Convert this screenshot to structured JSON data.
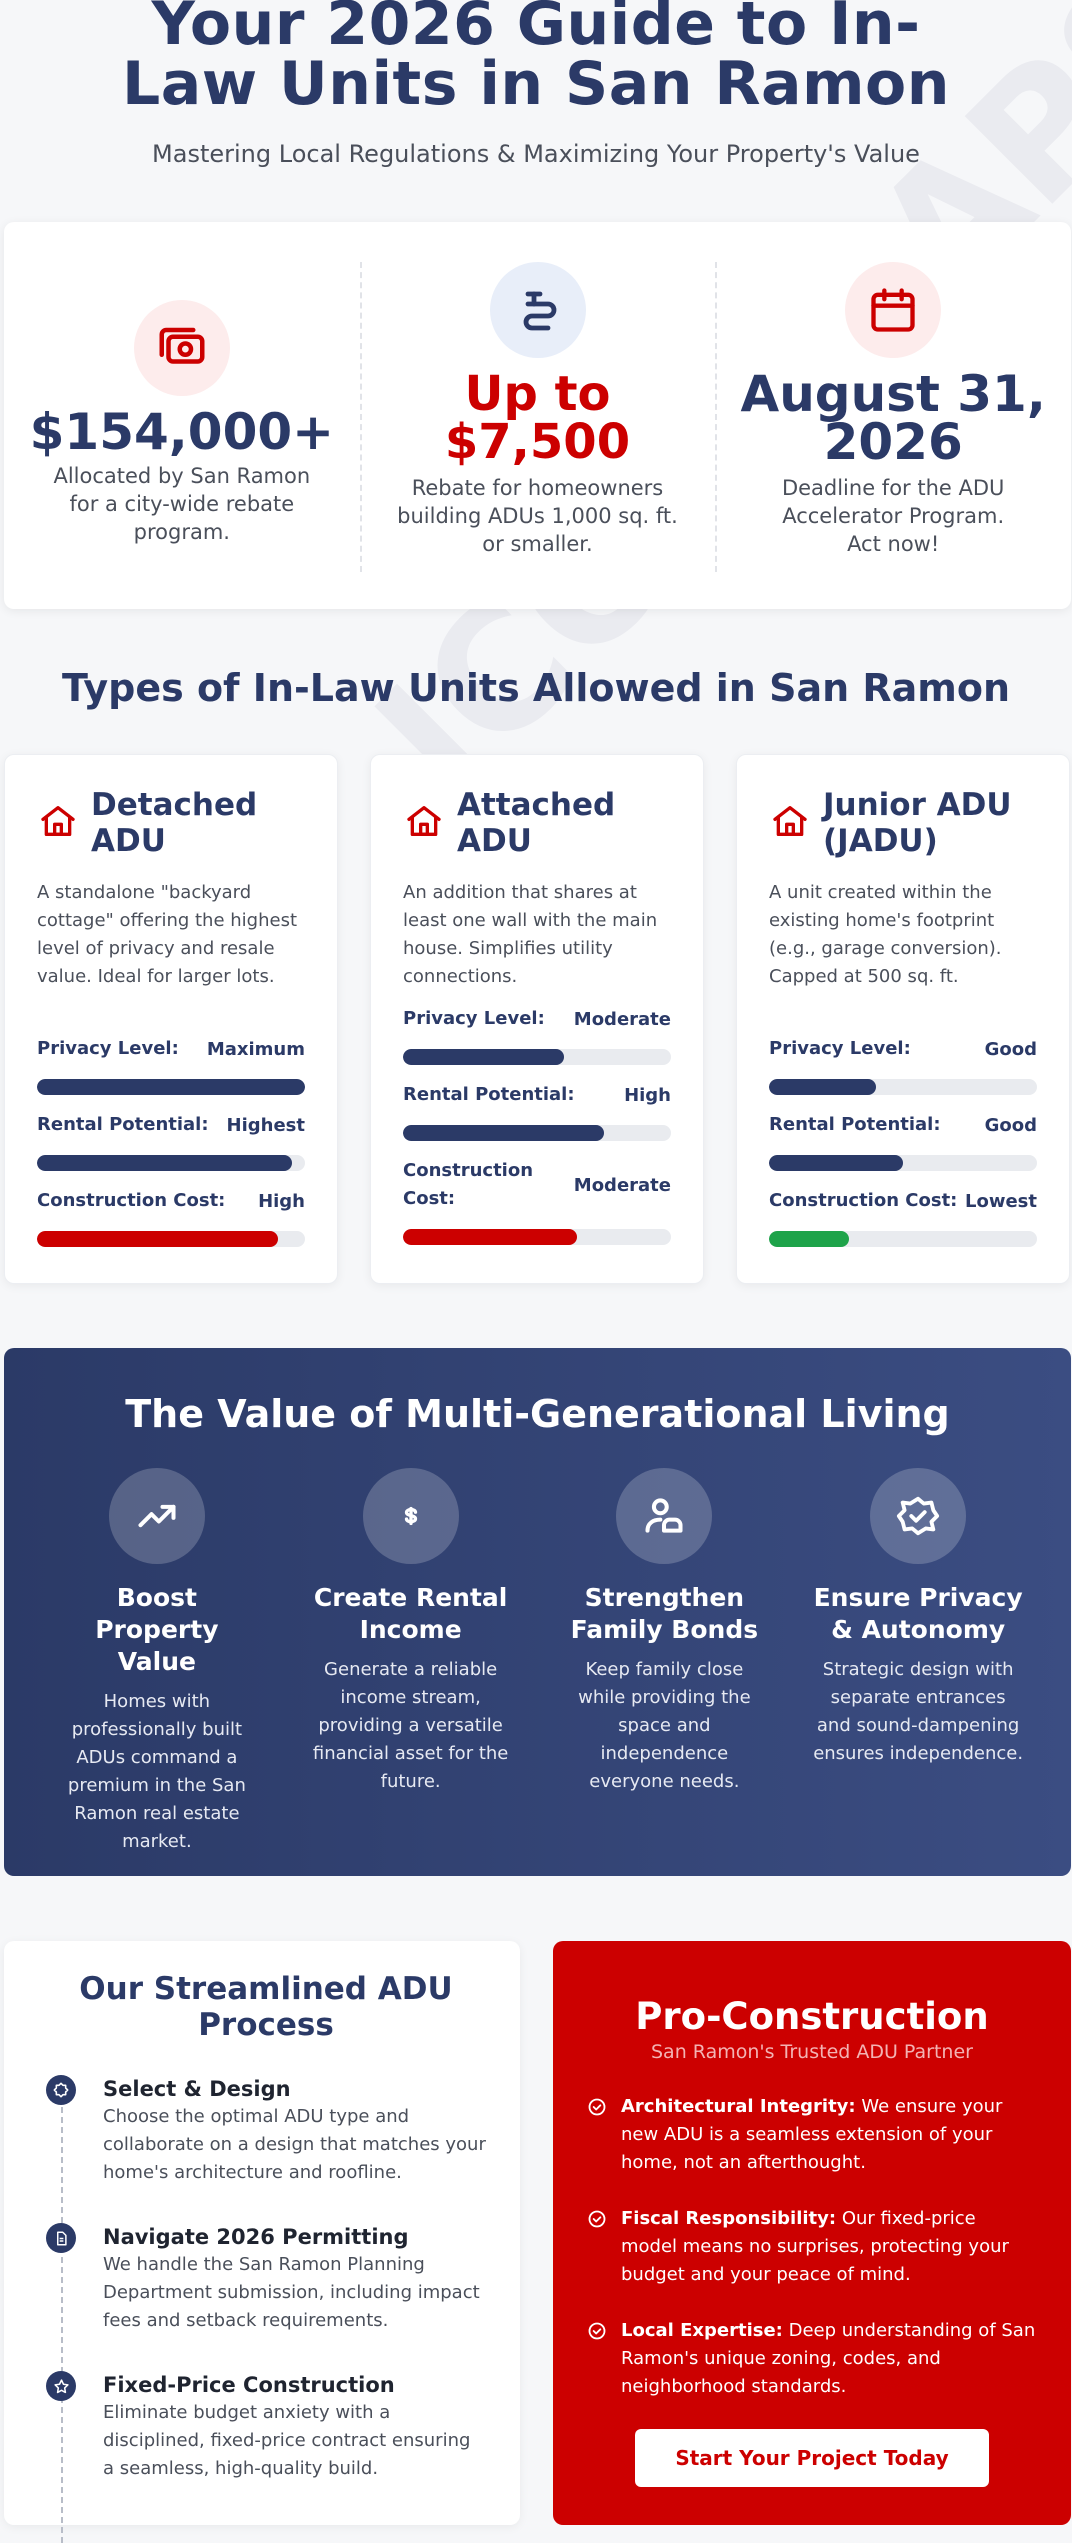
{
  "watermark": "ICON MAPS",
  "hero": {
    "title": "Your 2026 Guide to In-Law Units in San Ramon",
    "subtitle": "Mastering Local Regulations & Maximizing Your Property's Value"
  },
  "stats": [
    {
      "icon": "money-icon",
      "value": "$154,000+",
      "desc": "Allocated by San Ramon for a city-wide rebate program."
    },
    {
      "icon": "rebate-icon",
      "value": "Up to $7,500",
      "desc": "Rebate for homeowners building ADUs 1,000 sq. ft. or smaller."
    },
    {
      "icon": "calendar-icon",
      "value": "August 31, 2026",
      "desc": "Deadline for the ADU Accelerator Program. Act now!"
    }
  ],
  "types": {
    "title": "Types of In-Law Units Allowed in San Ramon",
    "cards": [
      {
        "title": "Detached ADU",
        "desc": "A standalone \"backyard cottage\" offering the highest level of privacy and resale value. Ideal for larger lots.",
        "metrics": [
          {
            "label": "Privacy Level:",
            "value": "Maximum",
            "level": 1.0,
            "color": "#2b3a67"
          },
          {
            "label": "Rental Potential:",
            "value": "Highest",
            "level": 0.95,
            "color": "#2b3a67"
          },
          {
            "label": "Construction Cost:",
            "value": "High",
            "level": 0.9,
            "color": "#cc0000"
          }
        ]
      },
      {
        "title": "Attached ADU",
        "desc": "An addition that shares at least one wall with the main house. Simplifies utility connections.",
        "metrics": [
          {
            "label": "Privacy Level:",
            "value": "Moderate",
            "level": 0.6,
            "color": "#2b3a67"
          },
          {
            "label": "Rental Potential:",
            "value": "High",
            "level": 0.75,
            "color": "#2b3a67"
          },
          {
            "label": "Construction Cost:",
            "value": "Moderate",
            "level": 0.65,
            "color": "#cc0000"
          }
        ]
      },
      {
        "title": "Junior ADU (JADU)",
        "desc": "A unit created within the existing home's footprint (e.g., garage conversion). Capped at 500 sq. ft.",
        "metrics": [
          {
            "label": "Privacy Level:",
            "value": "Good",
            "level": 0.4,
            "color": "#2b3a67"
          },
          {
            "label": "Rental Potential:",
            "value": "Good",
            "level": 0.5,
            "color": "#2b3a67"
          },
          {
            "label": "Construction Cost:",
            "value": "Lowest",
            "level": 0.3,
            "color": "#1ea34a"
          }
        ]
      }
    ]
  },
  "value": {
    "title": "The Value of Multi-Generational Living",
    "items": [
      {
        "icon": "trending-up-icon",
        "title": "Boost Property Value",
        "desc": "Homes with professionally built ADUs command a premium in the San Ramon real estate market."
      },
      {
        "icon": "dollar-icon",
        "title": "Create Rental Income",
        "desc": "Generate a reliable income stream, providing a versatile financial asset for the future."
      },
      {
        "icon": "family-icon",
        "title": "Strengthen Family Bonds",
        "desc": "Keep family close while providing the space and independence everyone needs."
      },
      {
        "icon": "shield-check-icon",
        "title": "Ensure Privacy & Autonomy",
        "desc": "Strategic design with separate entrances and sound-dampening ensures independence."
      }
    ]
  },
  "process": {
    "title": "Our Streamlined ADU Process",
    "steps": [
      {
        "title": "Select & Design",
        "desc": "Choose the optimal ADU type and collaborate on a design that matches your home's architecture and roofline."
      },
      {
        "title": "Navigate 2026 Permitting",
        "desc": "We handle the San Ramon Planning Department submission, including impact fees and setback requirements."
      },
      {
        "title": "Fixed-Price Construction",
        "desc": "Eliminate budget anxiety with a disciplined, fixed-price contract ensuring a seamless, high-quality build."
      }
    ]
  },
  "pro": {
    "title": "Pro-Construction",
    "tagline": "San Ramon's Trusted ADU Partner",
    "points": [
      {
        "lead": "Architectural Integrity:",
        "text": " We ensure your new ADU is a seamless extension of your home, not an afterthought."
      },
      {
        "lead": "Fiscal Responsibility:",
        "text": " Our fixed-price model means no surprises, protecting your budget and your peace of mind."
      },
      {
        "lead": "Local Expertise:",
        "text": " Deep understanding of San Ramon's unique zoning, codes, and neighborhood standards."
      }
    ],
    "cta": "Start Your Project Today"
  }
}
